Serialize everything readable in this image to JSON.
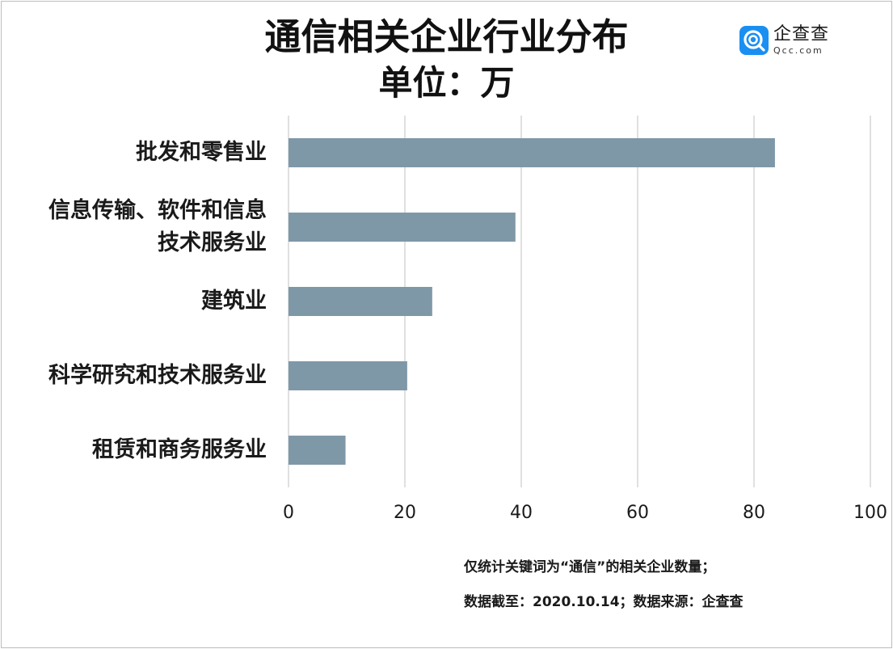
{
  "logo": {
    "name": "企查查",
    "domain": "Qcc.com"
  },
  "footnotes": [
    "仅统计关键词为“通信”的相关企业数量；",
    "数据截至：2020.10.14；数据来源：企查查"
  ],
  "chart_data": {
    "type": "bar",
    "orientation": "horizontal",
    "title": "通信相关企业行业分布",
    "subtitle": "单位：万",
    "categories": [
      [
        "批发和零售业"
      ],
      [
        "信息传输、软件和信息",
        "技术服务业"
      ],
      [
        "建筑业"
      ],
      [
        "科学研究和技术服务业"
      ],
      [
        "租赁和商务服务业"
      ]
    ],
    "values": [
      83.6,
      39.0,
      24.7,
      20.4,
      9.8
    ],
    "xlim": [
      0,
      100
    ],
    "xticks": [
      0,
      20,
      40,
      60,
      80,
      100
    ],
    "grid": true,
    "bar_color": "#7f98a8",
    "grid_color": "#d0d0d0"
  }
}
